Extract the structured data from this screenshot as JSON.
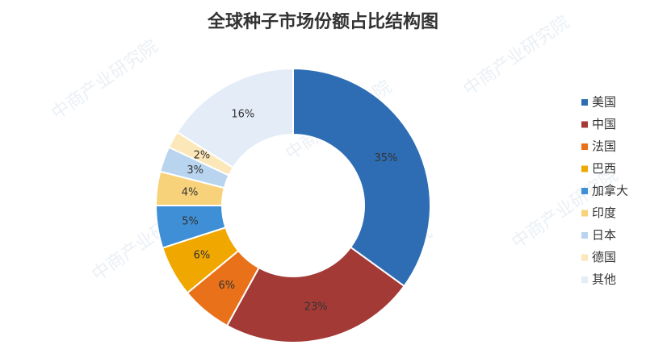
{
  "chart_data": {
    "type": "pie",
    "title": "全球种子市场份额占比结构图",
    "watermark": "中商产业研究院",
    "categories": [
      "美国",
      "中国",
      "法国",
      "巴西",
      "加拿大",
      "印度",
      "日本",
      "德国",
      "其他"
    ],
    "values": [
      35,
      23,
      6,
      6,
      5,
      4,
      3,
      2,
      16
    ],
    "value_labels": [
      "35%",
      "23%",
      "6%",
      "6%",
      "5%",
      "4%",
      "3%",
      "2%",
      "16%"
    ],
    "colors": [
      "#2e6db4",
      "#a33a36",
      "#e8711a",
      "#f0a800",
      "#3f8fd6",
      "#f8d27a",
      "#b8d4ee",
      "#fbe7b8",
      "#e3ecf7"
    ],
    "donut": true,
    "legend": "right"
  }
}
